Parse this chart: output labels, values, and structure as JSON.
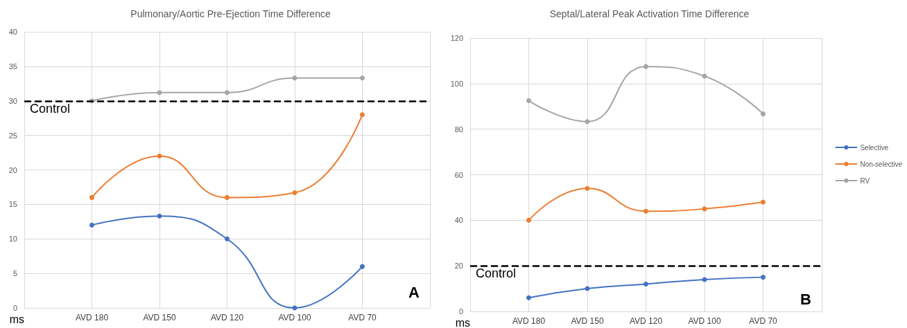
{
  "chart_data": [
    {
      "type": "line",
      "title": "Pulmonary/Aortic Pre-Ejection Time Difference",
      "ylabel": "ms",
      "annotations": [
        "A"
      ],
      "categories": [
        null,
        "AVD 180",
        "AVD 150",
        "AVD 120",
        "AVD 100",
        "AVD 70",
        null
      ],
      "series": [
        {
          "color": "#4472c4",
          "values": [
            null,
            12,
            13.3,
            10,
            0,
            6,
            null
          ]
        },
        {
          "color": "#ed7d31",
          "values": [
            null,
            16,
            22,
            16,
            16.7,
            28,
            null
          ]
        },
        {
          "color": "#a5a5a5",
          "values": [
            null,
            30,
            31.2,
            31.2,
            33.3,
            33.3,
            null
          ]
        }
      ],
      "ylim": [
        0,
        40
      ],
      "yticks": [
        0,
        5,
        10,
        15,
        20,
        25,
        30,
        35,
        40
      ],
      "grid": true,
      "legend": false,
      "marker": "circle",
      "line_style": "solid",
      "ref_lines": [
        {
          "axis": "y",
          "value": 30,
          "label": "Control",
          "color": "#000000",
          "line_style": "dashed"
        }
      ]
    },
    {
      "type": "line",
      "title": "Septal/Lateral Peak Activation Time Difference",
      "ylabel": "ms",
      "annotations": [
        "B"
      ],
      "categories": [
        null,
        "AVD 180",
        "AVD 150",
        "AVD 120",
        "AVD 100",
        "AVD 70",
        null
      ],
      "series": [
        {
          "name": "Selective",
          "color": "#4472c4",
          "values": [
            null,
            6,
            10,
            12,
            14,
            15,
            null
          ]
        },
        {
          "name": "Non-selective",
          "color": "#ed7d31",
          "values": [
            null,
            40,
            54,
            44,
            45,
            48,
            null
          ]
        },
        {
          "name": "RV",
          "color": "#a5a5a5",
          "values": [
            null,
            92.5,
            83.3,
            107.5,
            103.3,
            86.7,
            null
          ]
        }
      ],
      "ylim": [
        0,
        120
      ],
      "yticks": [
        0,
        20,
        40,
        60,
        80,
        100,
        120
      ],
      "grid": true,
      "legend": "right",
      "marker": "circle",
      "line_style": "solid",
      "ref_lines": [
        {
          "axis": "y",
          "value": 20,
          "label": "Control",
          "color": "#000000",
          "line_style": "dashed"
        }
      ]
    }
  ]
}
